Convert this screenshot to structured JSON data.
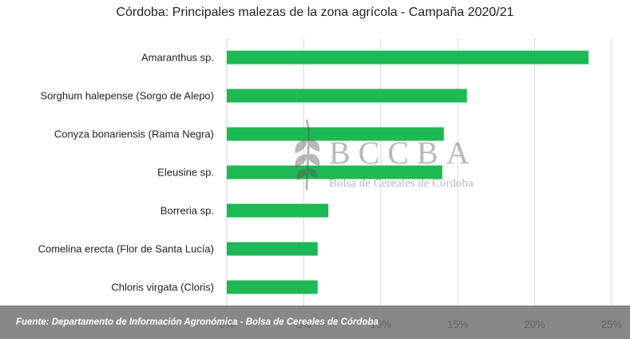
{
  "title": "Córdoba: Principales malezas de la zona agrícola - Campaña 2020/21",
  "footer": "Fuente: Departamento de Información Agronómica - Bolsa de Cereales de Córdoba",
  "watermark": {
    "letters": "BCCBA",
    "subtitle": "Bolsa de Cereales de Córdoba"
  },
  "colors": {
    "bar": "#1db954",
    "grid": "#d9d9d9",
    "footer": "#6e6e6e"
  },
  "chart_data": {
    "type": "bar",
    "orientation": "horizontal",
    "title": "Córdoba: Principales malezas de la zona agrícola - Campaña 2020/21",
    "categories": [
      "Amaranthus sp.",
      "Sorghum halepense (Sorgo de Alepo)",
      "Conyza bonariensis (Rama Negra)",
      "Eleusine sp.",
      "Borreria sp.",
      "Comelina erecta (Flor de Santa Lucía)",
      "Chloris virgata (Cloris)"
    ],
    "values": [
      23.5,
      15.6,
      14.1,
      14.0,
      6.6,
      5.9,
      5.9
    ],
    "xlim": [
      0,
      25
    ],
    "xticks": [
      "0%",
      "5%",
      "10%",
      "15%",
      "20%",
      "25%"
    ],
    "grid": true
  }
}
